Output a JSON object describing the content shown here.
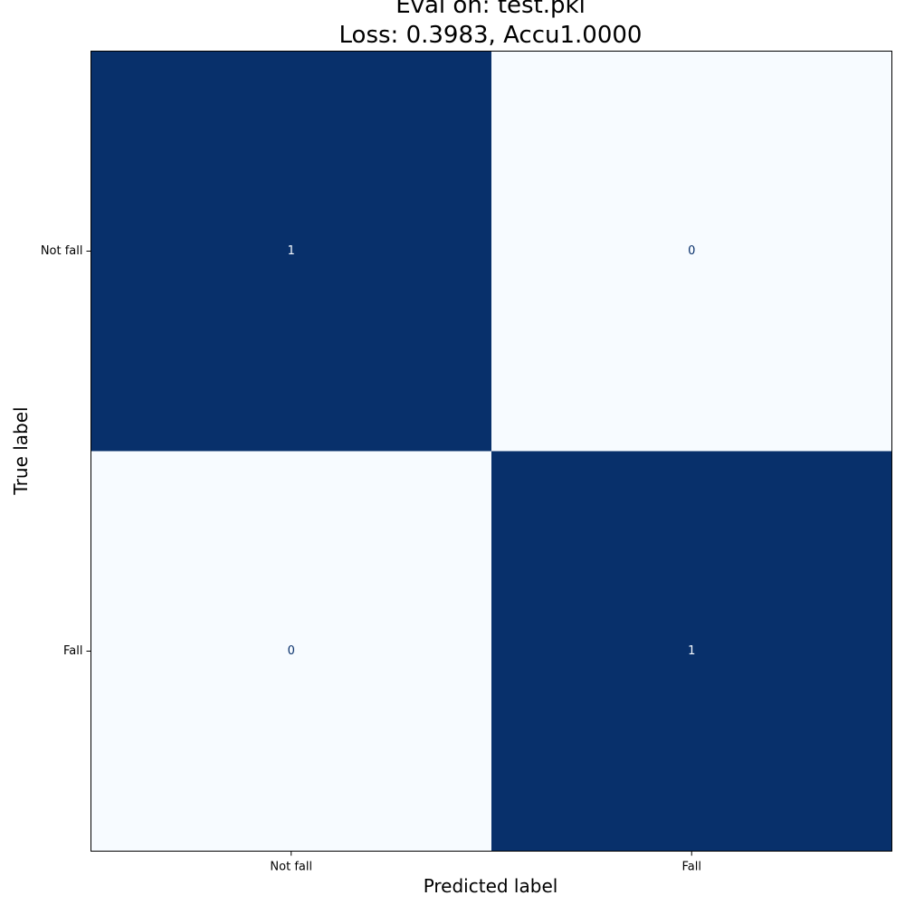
{
  "chart_data": {
    "type": "heatmap",
    "title_lines": [
      "Eval on: test.pkl",
      "Loss: 0.3983, Accu1.0000"
    ],
    "xlabel": "Predicted label",
    "ylabel": "True label",
    "x_categories": [
      "Not fall",
      "Fall"
    ],
    "y_categories": [
      "Not fall",
      "Fall"
    ],
    "matrix": [
      [
        1,
        0
      ],
      [
        0,
        1
      ]
    ],
    "colormap": "Blues",
    "colors": {
      "high": "#08306b",
      "low": "#f7fbff",
      "text_on_high": "#f7fbff",
      "text_on_low": "#08306b",
      "frame": "#000000"
    },
    "colorbar": false,
    "grid": false
  }
}
